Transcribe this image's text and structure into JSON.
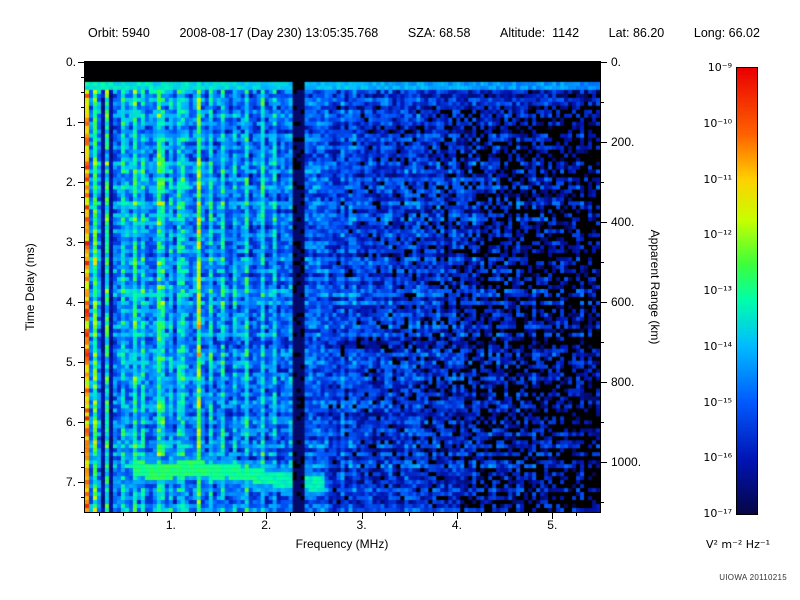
{
  "header": {
    "orbit": "Orbit: 5940",
    "datetime": "2008-08-17 (Day 230) 13:05:35.768",
    "sza": "SZA: 68.58",
    "altitude": "Altitude:  1142",
    "lat": "Lat: 86.20",
    "long": "Long: 66.02"
  },
  "chart_data": {
    "type": "heatmap",
    "title": "",
    "xlabel": "Frequency (MHz)",
    "ylabel_left": "Time Delay (ms)",
    "ylabel_right": "Apparent Range (km)",
    "x_range_mhz": [
      0.1,
      5.5
    ],
    "y_range_ms": [
      0,
      7.5
    ],
    "x_ticks": [
      1,
      2,
      3,
      4,
      5
    ],
    "x_tick_labels": [
      "1.",
      "2.",
      "3.",
      "4.",
      "5."
    ],
    "y_ticks": [
      0,
      1,
      2,
      3,
      4,
      5,
      6,
      7
    ],
    "y_tick_labels": [
      "0.",
      "1.",
      "2.",
      "3.",
      "4.",
      "5.",
      "6.",
      "7."
    ],
    "right_ticks_km": [
      0,
      200,
      400,
      600,
      800,
      1000
    ],
    "right_tick_labels": [
      "0.",
      "200.",
      "400.",
      "600.",
      "800.",
      "1000."
    ],
    "range_per_ms_km": 150,
    "colorbar": {
      "tick_labels": [
        "10⁻⁹",
        "10⁻¹⁰",
        "10⁻¹¹",
        "10⁻¹²",
        "10⁻¹³",
        "10⁻¹⁴",
        "10⁻¹⁵",
        "10⁻¹⁶",
        "10⁻¹⁷"
      ],
      "units": "V² m⁻² Hz⁻¹",
      "min_exp": -17,
      "max_exp": -9,
      "gradient_stops": [
        [
          0.0,
          "#060646"
        ],
        [
          0.12,
          "#0014b4"
        ],
        [
          0.25,
          "#005aff"
        ],
        [
          0.38,
          "#00beff"
        ],
        [
          0.48,
          "#00ffaa"
        ],
        [
          0.56,
          "#3cff3c"
        ],
        [
          0.66,
          "#c8ff00"
        ],
        [
          0.75,
          "#ffd200"
        ],
        [
          0.85,
          "#ff6400"
        ],
        [
          1.0,
          "#eb0000"
        ]
      ]
    },
    "features": {
      "transmit_blank_ms": 0.3,
      "surface_line_ms": 0.4,
      "blank_band_mhz": 2.35,
      "ionosphere_echo": {
        "f_start": 0.62,
        "f_end": 2.62,
        "delay_ms": 6.8
      },
      "plasma_stripes": [
        {
          "f": 0.13,
          "a": 0.3
        },
        {
          "f": 0.2,
          "a": 0.22
        },
        {
          "f": 0.33,
          "a": 0.15
        },
        {
          "f": 0.5,
          "a": 0.1
        },
        {
          "f": 0.62,
          "a": 0.12
        },
        {
          "f": 0.72,
          "a": 0.14
        },
        {
          "f": 0.9,
          "a": 0.17
        },
        {
          "f": 1.0,
          "a": 0.12
        },
        {
          "f": 1.1,
          "a": 0.15
        },
        {
          "f": 1.3,
          "a": 0.28
        },
        {
          "f": 1.42,
          "a": 0.12
        },
        {
          "f": 1.55,
          "a": 0.15
        },
        {
          "f": 1.68,
          "a": 0.12
        },
        {
          "f": 1.8,
          "a": 0.15
        },
        {
          "f": 1.95,
          "a": 0.12
        },
        {
          "f": 2.1,
          "a": 0.12
        },
        {
          "f": 2.25,
          "a": 0.1
        }
      ],
      "dark_stripes_mhz": [
        0.27,
        0.38
      ]
    },
    "credit": "UIOWA 20110215"
  }
}
